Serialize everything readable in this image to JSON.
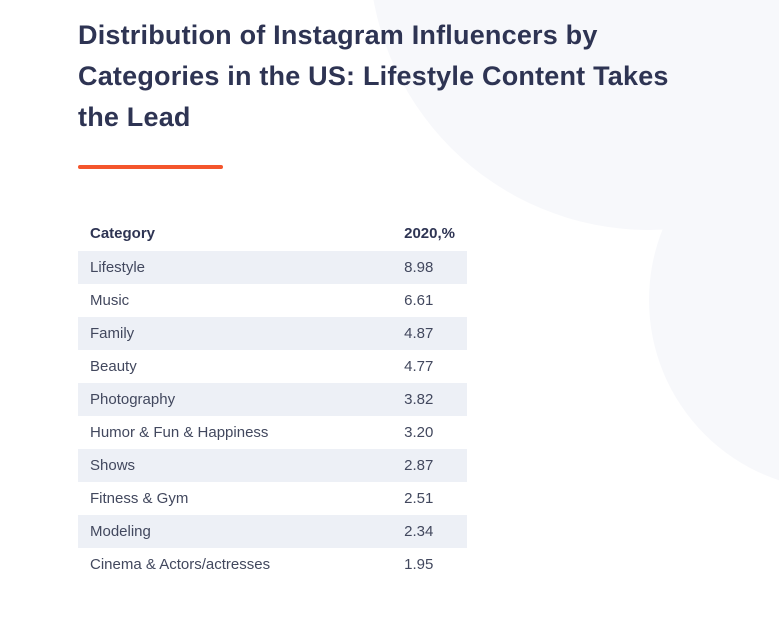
{
  "header": {
    "title": "Distribution of Instagram Influencers by Categories in the US: Lifestyle Content Takes the Lead"
  },
  "style": {
    "accent_color": "#f4552c",
    "title_color": "#2e3453",
    "row_stripe_color": "#edf0f6",
    "background_circle_color": "#f7f8fb"
  },
  "chart_data": {
    "type": "table",
    "title": "Distribution of Instagram Influencers by Categories in the US: Lifestyle Content Takes the Lead",
    "columns": [
      "Category",
      "2020,%"
    ],
    "rows": [
      [
        "Lifestyle",
        "8.98"
      ],
      [
        "Music",
        "6.61"
      ],
      [
        "Family",
        "4.87"
      ],
      [
        "Beauty",
        "4.77"
      ],
      [
        "Photography",
        "3.82"
      ],
      [
        "Humor & Fun & Happiness",
        "3.20"
      ],
      [
        "Shows",
        "2.87"
      ],
      [
        "Fitness & Gym",
        "2.51"
      ],
      [
        "Modeling",
        "2.34"
      ],
      [
        "Cinema & Actors/actresses",
        "1.95"
      ]
    ],
    "values": [
      8.98,
      6.61,
      4.87,
      4.77,
      3.82,
      3.2,
      2.87,
      2.51,
      2.34,
      1.95
    ],
    "layout": {
      "striped_rows": true,
      "value_alignment": "left"
    }
  }
}
